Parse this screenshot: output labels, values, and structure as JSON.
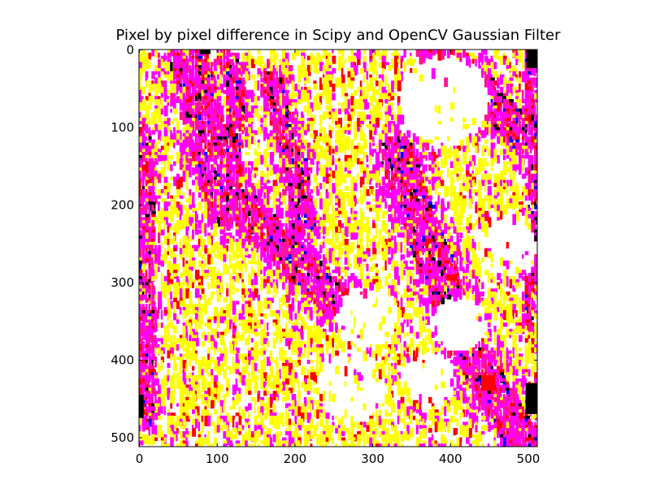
{
  "chart_data": {
    "type": "heatmap",
    "title": "Pixel by pixel difference in Scipy and OpenCV Gaussian Filter",
    "xlabel": "",
    "ylabel": "",
    "xlim": [
      0,
      511
    ],
    "ylim": [
      511,
      0
    ],
    "x_ticks": [
      0,
      100,
      200,
      300,
      400,
      500
    ],
    "y_ticks": [
      0,
      100,
      200,
      300,
      400,
      500
    ],
    "x_tick_labels": [
      "0",
      "100",
      "200",
      "300",
      "400",
      "500"
    ],
    "y_tick_labels": [
      "0",
      "100",
      "200",
      "300",
      "400",
      "500"
    ],
    "image_size": [
      512,
      512
    ],
    "grid": false,
    "legend": "none",
    "palette": {
      "background": "#ffffff",
      "yellow": "#ffff00",
      "magenta": "#ff00ff",
      "pink": "#ff1493",
      "red": "#ff0000",
      "black": "#000000",
      "blue": "#0000ff",
      "cyan": "#00ffff"
    }
  }
}
